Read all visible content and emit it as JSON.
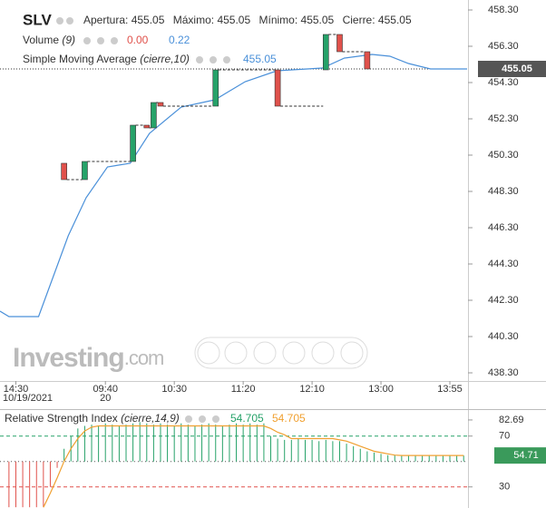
{
  "chart_data": {
    "type": "candlestick",
    "title": "SLV",
    "ohlc_info": [
      {
        "label": "Apertura:",
        "value": "455.05"
      },
      {
        "label": "Máximo:",
        "value": "455.05"
      },
      {
        "label": "Mínimo:",
        "value": "455.05"
      },
      {
        "label": "Cierre:",
        "value": "455.05"
      }
    ],
    "volume_legend": {
      "name": "Volume",
      "params": "(9)",
      "values": [
        "0.00",
        "0.22"
      ]
    },
    "sma_legend": {
      "name": "Simple Moving Average",
      "params": "(cierre,10)",
      "value": "455.05"
    },
    "watermark": {
      "brand": "Investing",
      "suffix": ".com"
    },
    "xlim": [
      -15.3,
      52.5
    ],
    "xticks": [
      {
        "value": -13,
        "label": "14:30"
      },
      {
        "value": 0,
        "label": "09:40"
      },
      {
        "value": 10,
        "label": "10:30"
      },
      {
        "value": 20,
        "label": "11:20"
      },
      {
        "value": 30,
        "label": "12:10"
      },
      {
        "value": 40,
        "label": "13:00"
      },
      {
        "value": 50,
        "label": "13:55"
      }
    ],
    "xtick_dates": [
      {
        "value": -13,
        "label": "10/19/2021"
      },
      {
        "value": 0,
        "label": "20"
      }
    ],
    "ylim": [
      437.85,
      458.85
    ],
    "yticks": [
      {
        "value": 438.3,
        "label": "438.30"
      },
      {
        "value": 440.3,
        "label": "440.30"
      },
      {
        "value": 442.3,
        "label": "442.30"
      },
      {
        "value": 444.3,
        "label": "444.30"
      },
      {
        "value": 446.3,
        "label": "446.30"
      },
      {
        "value": 448.3,
        "label": "448.30"
      },
      {
        "value": 450.3,
        "label": "450.30"
      },
      {
        "value": 452.3,
        "label": "452.30"
      },
      {
        "value": 454.3,
        "label": "454.30"
      },
      {
        "value": 456.3,
        "label": "456.30"
      },
      {
        "value": 458.3,
        "label": "458.30"
      }
    ],
    "last_value": 455.05,
    "up_color": "#26a269",
    "down_color": "#e0514b",
    "candles": {
      "x": [
        -6,
        -3,
        4,
        6,
        7,
        8,
        16,
        25,
        32,
        34,
        38
      ],
      "open": [
        449.85,
        448.95,
        449.95,
        451.95,
        451.8,
        453.2,
        453.0,
        455.0,
        455.0,
        456.95,
        456.0
      ],
      "close": [
        448.95,
        449.95,
        451.95,
        451.8,
        453.2,
        453.0,
        455.0,
        453.0,
        456.95,
        456.0,
        455.05
      ]
    },
    "sma": {
      "color": "#4a90d9",
      "x": [
        -15.3,
        -14,
        -9.7,
        -5.4,
        -2.8,
        0.3,
        3.6,
        6.4,
        11,
        15.9,
        20.3,
        24.9,
        31.5,
        34.7,
        38.7,
        41.3,
        44,
        47.2,
        52.5
      ],
      "values": [
        441.7,
        441.4,
        441.4,
        445.85,
        447.95,
        449.65,
        449.85,
        451.5,
        452.95,
        453.35,
        454.35,
        454.95,
        455.1,
        455.65,
        455.85,
        455.75,
        455.35,
        455.05,
        455.05
      ]
    },
    "rsi": {
      "name": "Relative Strength Index",
      "params": "(cierre,14,9)",
      "legend_values": [
        "54.705",
        "54.705"
      ],
      "ylim": [
        13.4,
        90.5
      ],
      "yticks": [
        30,
        70,
        82.69
      ],
      "midline": 50,
      "last_value": 54.71,
      "x": [
        -14,
        -13,
        -12,
        -11,
        -10,
        -9,
        -8,
        -7,
        -6,
        -5,
        -4,
        -3,
        -2,
        -1,
        0,
        1,
        2,
        3,
        4,
        5,
        6,
        7,
        8,
        9,
        10,
        11,
        12,
        13,
        14,
        15,
        16,
        17,
        18,
        19,
        20,
        21,
        22,
        23,
        24,
        25,
        26,
        27,
        28,
        29,
        30,
        31,
        32,
        33,
        34,
        35,
        36,
        37,
        38,
        39,
        40,
        41,
        42,
        43,
        44,
        45,
        46,
        47,
        48,
        49,
        50,
        51,
        52
      ],
      "values": [
        14,
        14,
        14,
        14,
        14,
        14,
        30,
        45,
        60,
        70,
        76,
        78,
        79,
        78,
        80,
        79,
        78,
        79,
        80,
        81,
        80,
        79,
        80,
        79,
        78,
        80,
        79,
        78,
        79,
        80,
        79,
        78,
        79,
        80,
        79,
        80,
        79,
        80,
        70,
        68,
        67,
        67,
        68,
        67,
        67,
        66,
        67,
        66,
        66,
        64,
        62,
        60,
        58,
        57,
        56,
        55,
        55,
        55,
        54.8,
        54.7,
        54.7,
        54.7,
        54.7,
        54.7,
        54.7,
        54.7,
        54.7
      ],
      "signal": [
        null,
        null,
        null,
        null,
        null,
        14,
        25,
        37,
        50,
        60,
        68,
        74,
        77,
        78,
        78,
        78,
        78,
        78,
        78,
        78,
        78,
        78,
        78,
        78,
        78,
        78,
        78,
        78,
        78,
        78,
        78,
        78,
        78,
        78,
        78,
        78,
        78,
        78,
        76,
        73,
        71,
        68,
        68,
        68,
        68,
        68,
        68,
        68,
        67,
        66,
        64,
        62,
        60,
        58,
        57,
        56,
        55,
        54.705,
        54.705,
        54.705,
        54.705,
        54.705,
        54.705,
        54.705,
        54.705,
        54.705,
        54.705
      ],
      "signal_color": "#f0a030",
      "upper_color": "#26a269",
      "lower_color": "#e0514b"
    }
  }
}
